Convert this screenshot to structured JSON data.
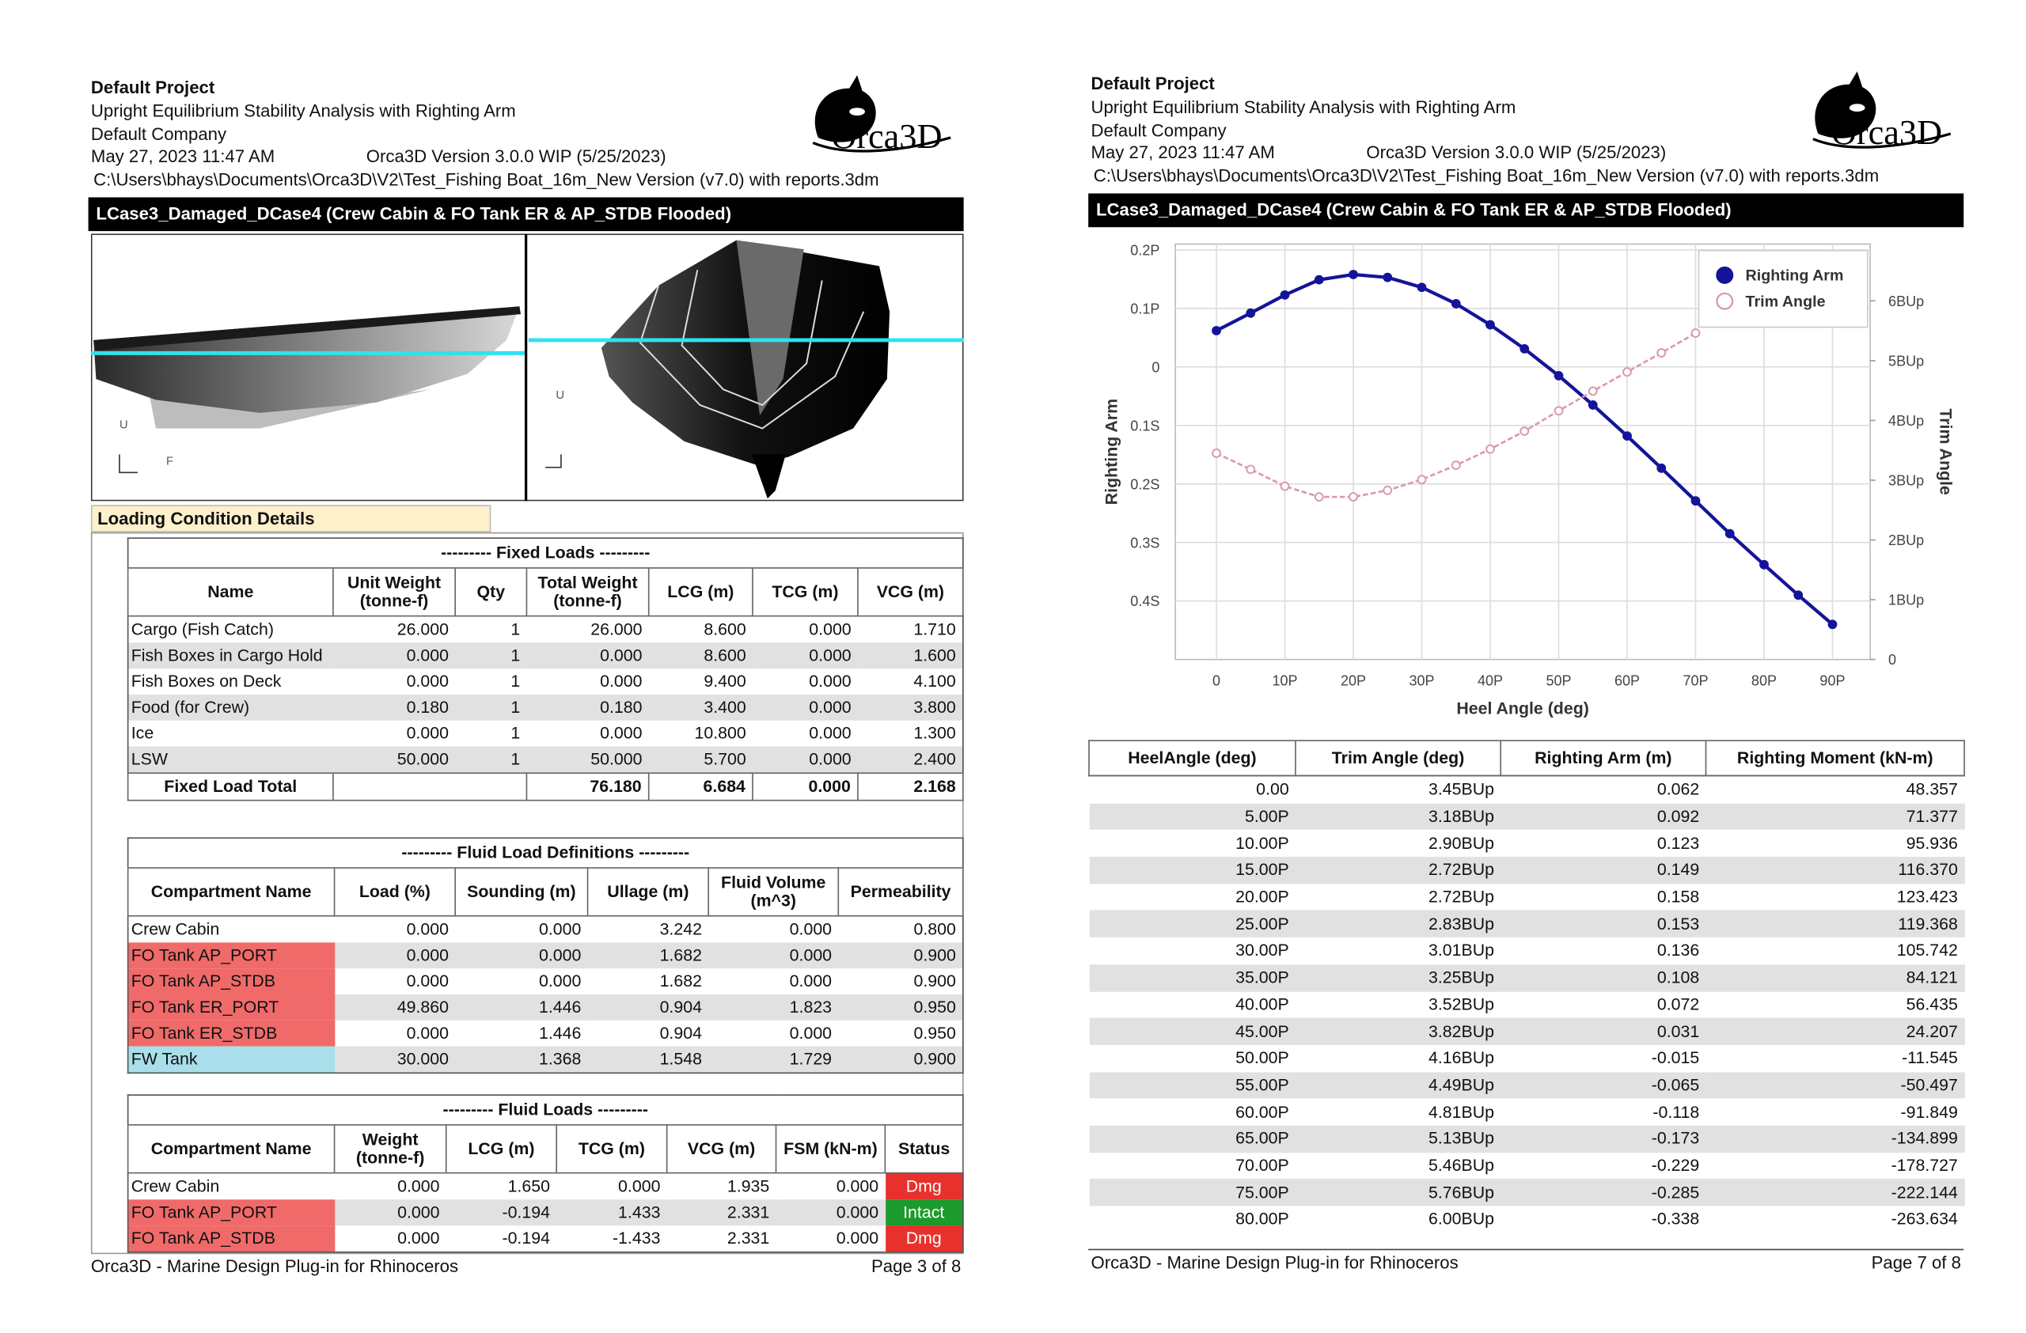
{
  "left_page": {
    "header": {
      "project": "Default Project",
      "report": "Upright Equilibrium Stability Analysis with Righting Arm",
      "company": "Default Company",
      "date": "May 27, 2023 11:47 AM",
      "version": "Orca3D Version 3.0.0 WIP (5/25/2023)",
      "file_path": "C:\\Users\\bhays\\Documents\\Orca3D\\V2\\Test_Fishing Boat_16m_New Version (v7.0) with reports.3dm"
    },
    "logo": "Orca3D",
    "section_title": "LCase3_Damaged_DCase4 (Crew Cabin & FO Tank ER & AP_STDB Flooded)",
    "view_labels": [
      "U",
      "F",
      "U"
    ],
    "loading_title": "Loading Condition Details",
    "fixed_loads": {
      "title": "--------- Fixed Loads ---------",
      "headers": [
        "Name",
        "Unit Weight (tonne-f)",
        "Qty",
        "Total Weight (tonne-f)",
        "LCG (m)",
        "TCG (m)",
        "VCG (m)"
      ],
      "rows": [
        [
          "Cargo (Fish Catch)",
          "26.000",
          "1",
          "26.000",
          "8.600",
          "0.000",
          "1.710"
        ],
        [
          "Fish Boxes in Cargo Hold",
          "0.000",
          "1",
          "0.000",
          "8.600",
          "0.000",
          "1.600"
        ],
        [
          "Fish Boxes on Deck",
          "0.000",
          "1",
          "0.000",
          "9.400",
          "0.000",
          "4.100"
        ],
        [
          "Food (for Crew)",
          "0.180",
          "1",
          "0.180",
          "3.400",
          "0.000",
          "3.800"
        ],
        [
          "Ice",
          "0.000",
          "1",
          "0.000",
          "10.800",
          "0.000",
          "1.300"
        ],
        [
          "LSW",
          "50.000",
          "1",
          "50.000",
          "5.700",
          "0.000",
          "2.400"
        ]
      ],
      "total": {
        "label": "Fixed Load Total",
        "values": [
          "76.180",
          "6.684",
          "0.000",
          "2.168"
        ]
      }
    },
    "fluid_definitions": {
      "title": "--------- Fluid Load Definitions ---------",
      "headers": [
        "Compartment Name",
        "Load (%)",
        "Sounding (m)",
        "Ullage (m)",
        "Fluid Volume (m^3)",
        "Permeability"
      ],
      "rows": [
        [
          "Crew Cabin",
          "0.000",
          "0.000",
          "3.242",
          "0.000",
          "0.800"
        ],
        [
          "FO Tank AP_PORT",
          "0.000",
          "0.000",
          "1.682",
          "0.000",
          "0.900"
        ],
        [
          "FO Tank AP_STDB",
          "0.000",
          "0.000",
          "1.682",
          "0.000",
          "0.900"
        ],
        [
          "FO Tank ER_PORT",
          "49.860",
          "1.446",
          "0.904",
          "1.823",
          "0.950"
        ],
        [
          "FO Tank ER_STDB",
          "0.000",
          "1.446",
          "0.904",
          "0.000",
          "0.950"
        ],
        [
          "FW Tank",
          "30.000",
          "1.368",
          "1.548",
          "1.729",
          "0.900"
        ]
      ],
      "name_colors": [
        null,
        "#f06a6a",
        "#f06a6a",
        "#f06a6a",
        "#f06a6a",
        "#a9dfea"
      ]
    },
    "fluid_loads": {
      "title": "--------- Fluid Loads ---------",
      "headers": [
        "Compartment Name",
        "Weight (tonne-f)",
        "LCG (m)",
        "TCG (m)",
        "VCG (m)",
        "FSM (kN-m)",
        "Status"
      ],
      "rows": [
        [
          "Crew Cabin",
          "0.000",
          "1.650",
          "0.000",
          "1.935",
          "0.000",
          "Dmg"
        ],
        [
          "FO Tank AP_PORT",
          "0.000",
          "-0.194",
          "1.433",
          "2.331",
          "0.000",
          "Intact"
        ],
        [
          "FO Tank AP_STDB",
          "0.000",
          "-0.194",
          "-1.433",
          "2.331",
          "0.000",
          "Dmg"
        ]
      ],
      "name_colors": [
        null,
        "#f06a6a",
        "#f06a6a"
      ],
      "status_colors": [
        "#e8302c",
        "#1c9a2c",
        "#e8302c"
      ]
    },
    "footer": {
      "left": "Orca3D - Marine Design Plug-in for Rhinoceros",
      "right": "Page 3 of 8"
    }
  },
  "right_page": {
    "header": {
      "project": "Default Project",
      "report": "Upright Equilibrium Stability Analysis with Righting Arm",
      "company": "Default Company",
      "date": "May 27, 2023 11:47 AM",
      "version": "Orca3D Version 3.0.0 WIP (5/25/2023)",
      "file_path": "C:\\Users\\bhays\\Documents\\Orca3D\\V2\\Test_Fishing Boat_16m_New Version (v7.0) with reports.3dm"
    },
    "logo": "Orca3D",
    "section_title": "LCase3_Damaged_DCase4 (Crew Cabin & FO Tank ER & AP_STDB Flooded)",
    "chart": {
      "type": "line",
      "xlabel": "Heel Angle (deg)",
      "ylabel": "Righting Arm",
      "y2label": "Trim Angle",
      "x": [
        0,
        5,
        10,
        15,
        20,
        25,
        30,
        35,
        40,
        45,
        50,
        55,
        60,
        65,
        70,
        75,
        80,
        85,
        90
      ],
      "series": [
        {
          "name": "Righting Arm",
          "color": "#14149a",
          "marker": "filled",
          "values": [
            0.062,
            0.092,
            0.123,
            0.149,
            0.158,
            0.153,
            0.136,
            0.108,
            0.072,
            0.031,
            -0.015,
            -0.065,
            -0.118,
            -0.173,
            -0.229,
            -0.285,
            -0.338,
            -0.39,
            -0.44
          ]
        },
        {
          "name": "Trim Angle",
          "color": "#d99aa8",
          "marker": "hollow",
          "axis": "y2",
          "values": [
            3.45,
            3.18,
            2.9,
            2.72,
            2.72,
            2.83,
            3.01,
            3.25,
            3.52,
            3.82,
            4.16,
            4.49,
            4.81,
            5.13,
            5.46,
            null,
            null,
            null,
            null
          ]
        }
      ],
      "xlim": [
        -6,
        95.5
      ],
      "xticks": [
        0,
        {
          "value": 10,
          "label": "10P"
        },
        {
          "value": 20,
          "label": "20P"
        },
        {
          "value": 30,
          "label": "30P"
        },
        {
          "value": 40,
          "label": "40P"
        },
        {
          "value": 50,
          "label": "50P"
        },
        {
          "value": 60,
          "label": "60P"
        },
        {
          "value": 70,
          "label": "70P"
        },
        {
          "value": 80,
          "label": "80P"
        },
        {
          "value": 90,
          "label": "90P"
        }
      ],
      "ylim": [
        -0.5,
        0.21
      ],
      "yticks": [
        {
          "value": 0.2,
          "label": "0.2P"
        },
        {
          "value": 0.1,
          "label": "0.1P"
        },
        0,
        {
          "value": -0.1,
          "label": "0.1S"
        },
        {
          "value": -0.2,
          "label": "0.2S"
        },
        {
          "value": -0.3,
          "label": "0.3S"
        },
        {
          "value": -0.4,
          "label": "0.4S"
        }
      ],
      "y2lim": [
        0,
        6.95
      ],
      "y2ticks": [
        0,
        {
          "value": 1,
          "label": "1BUp"
        },
        {
          "value": 2,
          "label": "2BUp"
        },
        {
          "value": 3,
          "label": "3BUp"
        },
        {
          "value": 4,
          "label": "4BUp"
        },
        {
          "value": 5,
          "label": "5BUp"
        },
        {
          "value": 6,
          "label": "6BUp"
        }
      ],
      "grid": true,
      "legend": "upper right"
    },
    "table": {
      "headers": [
        "HeelAngle (deg)",
        "Trim Angle (deg)",
        "Righting Arm (m)",
        "Righting Moment (kN-m)"
      ],
      "rows": [
        [
          "0.00",
          "3.45BUp",
          "0.062",
          "48.357"
        ],
        [
          "5.00P",
          "3.18BUp",
          "0.092",
          "71.377"
        ],
        [
          "10.00P",
          "2.90BUp",
          "0.123",
          "95.936"
        ],
        [
          "15.00P",
          "2.72BUp",
          "0.149",
          "116.370"
        ],
        [
          "20.00P",
          "2.72BUp",
          "0.158",
          "123.423"
        ],
        [
          "25.00P",
          "2.83BUp",
          "0.153",
          "119.368"
        ],
        [
          "30.00P",
          "3.01BUp",
          "0.136",
          "105.742"
        ],
        [
          "35.00P",
          "3.25BUp",
          "0.108",
          "84.121"
        ],
        [
          "40.00P",
          "3.52BUp",
          "0.072",
          "56.435"
        ],
        [
          "45.00P",
          "3.82BUp",
          "0.031",
          "24.207"
        ],
        [
          "50.00P",
          "4.16BUp",
          "-0.015",
          "-11.545"
        ],
        [
          "55.00P",
          "4.49BUp",
          "-0.065",
          "-50.497"
        ],
        [
          "60.00P",
          "4.81BUp",
          "-0.118",
          "-91.849"
        ],
        [
          "65.00P",
          "5.13BUp",
          "-0.173",
          "-134.899"
        ],
        [
          "70.00P",
          "5.46BUp",
          "-0.229",
          "-178.727"
        ],
        [
          "75.00P",
          "5.76BUp",
          "-0.285",
          "-222.144"
        ],
        [
          "80.00P",
          "6.00BUp",
          "-0.338",
          "-263.634"
        ]
      ]
    },
    "footer": {
      "left": "Orca3D - Marine Design Plug-in for Rhinoceros",
      "right": "Page 7 of 8"
    }
  }
}
